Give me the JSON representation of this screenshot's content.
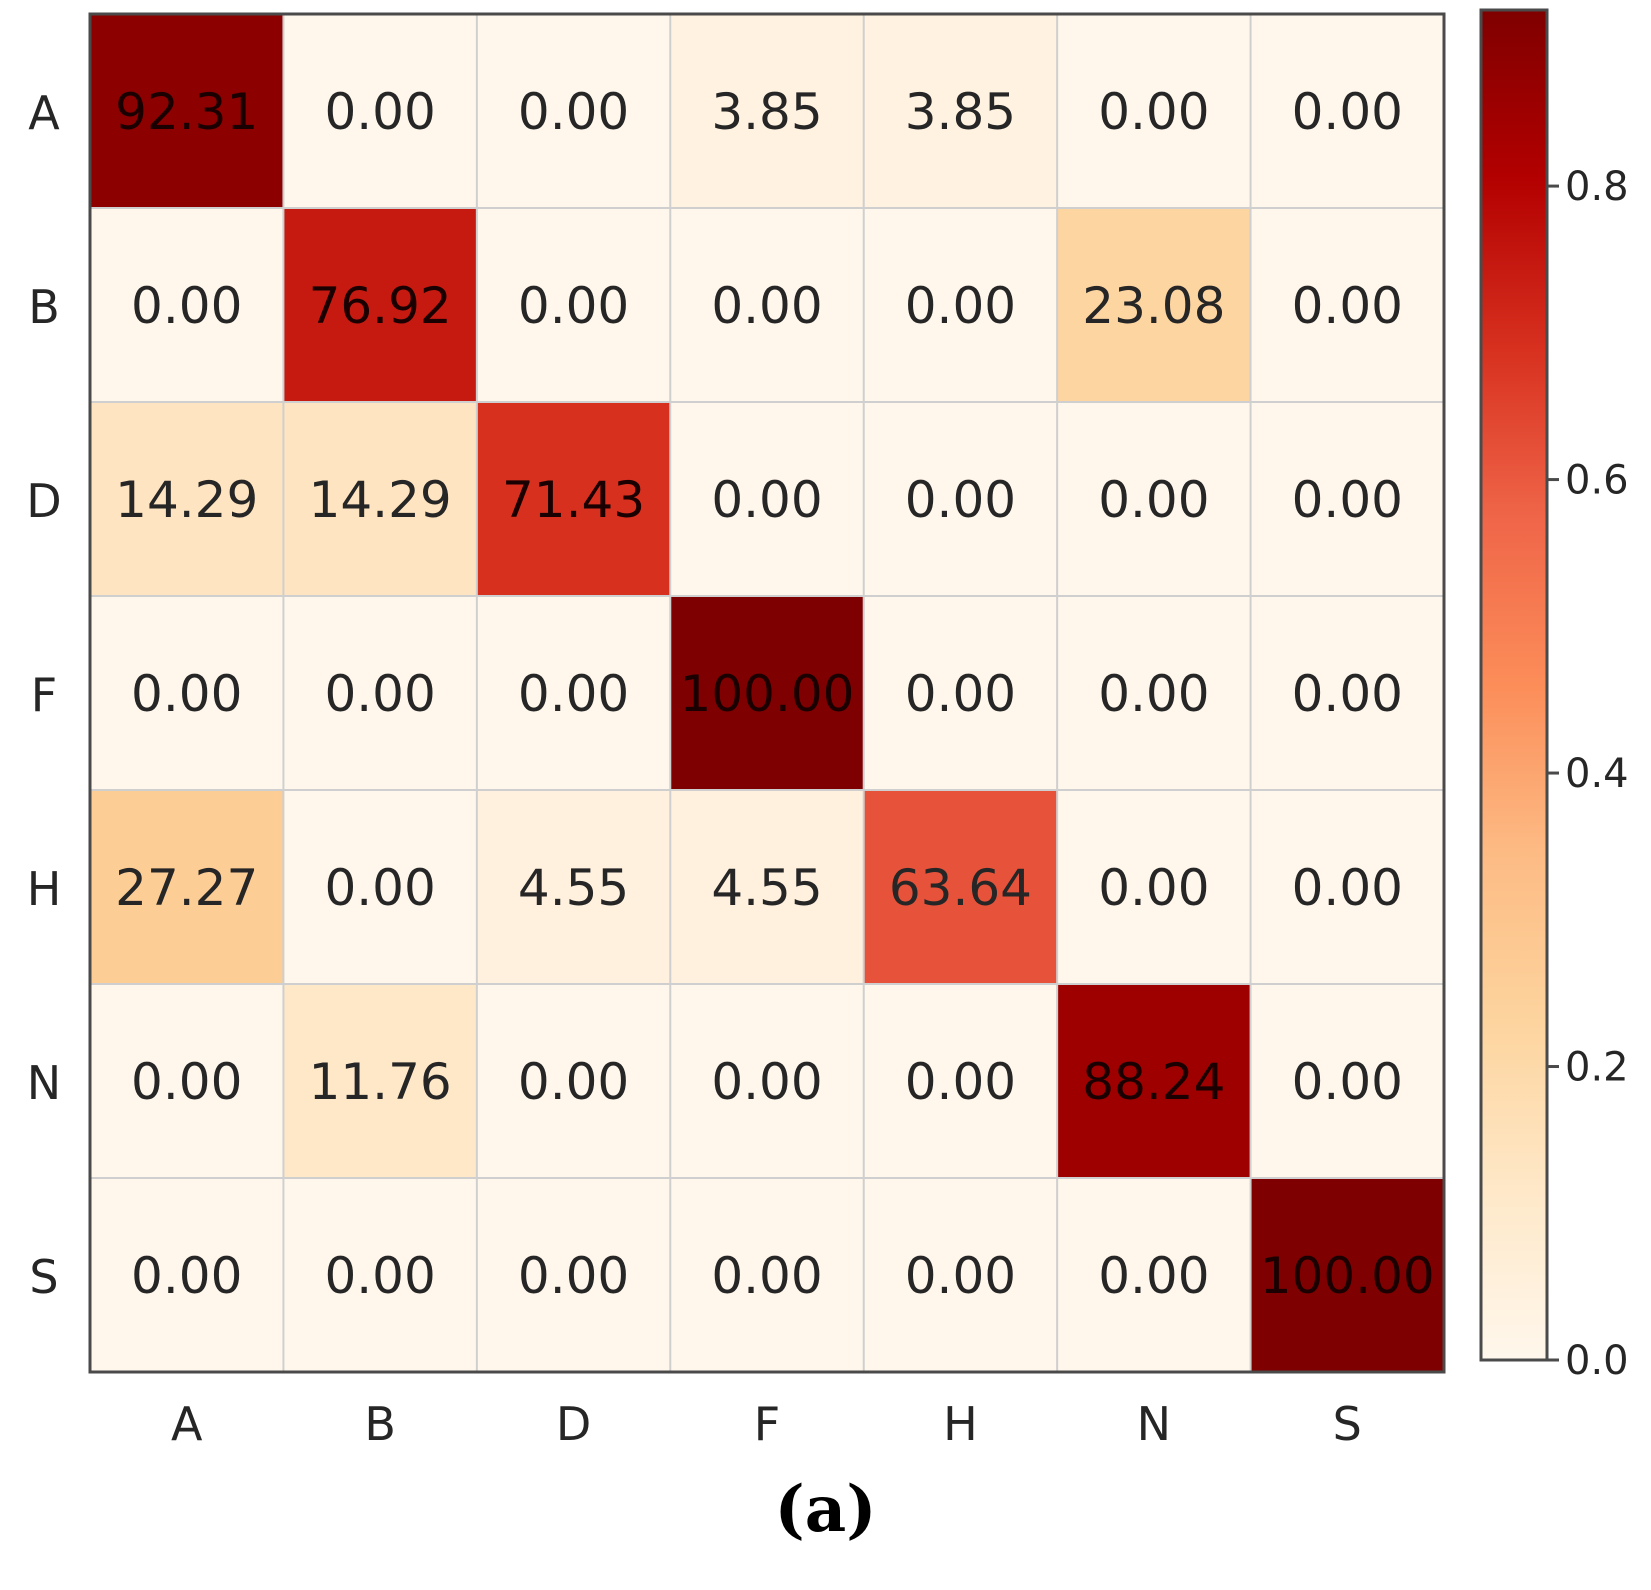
{
  "chart_data": {
    "type": "heatmap",
    "title": "",
    "xlabel": "",
    "ylabel": "",
    "row_labels": [
      "A",
      "B",
      "D",
      "F",
      "H",
      "N",
      "S"
    ],
    "col_labels": [
      "A",
      "B",
      "D",
      "F",
      "H",
      "N",
      "S"
    ],
    "values": [
      [
        92.31,
        0.0,
        0.0,
        3.85,
        3.85,
        0.0,
        0.0
      ],
      [
        0.0,
        76.92,
        0.0,
        0.0,
        0.0,
        23.08,
        0.0
      ],
      [
        14.29,
        14.29,
        71.43,
        0.0,
        0.0,
        0.0,
        0.0
      ],
      [
        0.0,
        0.0,
        0.0,
        100.0,
        0.0,
        0.0,
        0.0
      ],
      [
        27.27,
        0.0,
        4.55,
        4.55,
        63.64,
        0.0,
        0.0
      ],
      [
        0.0,
        11.76,
        0.0,
        0.0,
        0.0,
        88.24,
        0.0
      ],
      [
        0.0,
        0.0,
        0.0,
        0.0,
        0.0,
        0.0,
        100.0
      ]
    ],
    "value_format": "2-decimal",
    "colormap": "OrRd",
    "colorbar": {
      "range": [
        0.0,
        0.92
      ],
      "ticks": [
        0.0,
        0.2,
        0.4,
        0.6,
        0.8
      ],
      "tick_labels": [
        "0.0",
        "0.2",
        "0.4",
        "0.6",
        "0.8"
      ]
    },
    "grid": true
  },
  "caption": "(a)"
}
